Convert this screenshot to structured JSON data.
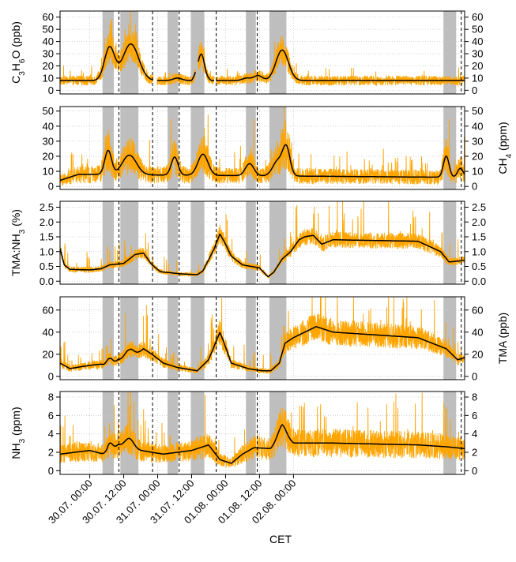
{
  "colors": {
    "raw": "#FFA500",
    "smooth": "#000000",
    "shade": "#BEBEBE",
    "grid": "#C8C8C8",
    "vline": "#000000"
  },
  "chart_data": {
    "type": "line",
    "xlabel": "CET",
    "x_unit": "hours since 29.07. 00:00",
    "x_range": [
      13.5,
      156.5
    ],
    "x_ticks": [
      {
        "x": 24,
        "label": "30.07. 00:00"
      },
      {
        "x": 36,
        "label": "30.07. 12:00"
      },
      {
        "x": 48,
        "label": "31.07. 00:00"
      },
      {
        "x": 60,
        "label": "31.07. 12:00"
      },
      {
        "x": 72,
        "label": "01.08. 00:00"
      },
      {
        "x": 84,
        "label": "01.08. 12:00"
      },
      {
        "x": 96,
        "label": "02.08. 00:00"
      }
    ],
    "shaded_intervals": [
      [
        28.5,
        32.5
      ],
      [
        34.8,
        41.2
      ],
      [
        51.5,
        55.2
      ],
      [
        59.7,
        64.5
      ],
      [
        79.2,
        82.7
      ],
      [
        87.5,
        93.5
      ],
      [
        149,
        153.5
      ]
    ],
    "dashed_lines": [
      34.3,
      46.2,
      55.6,
      68.7,
      83.2,
      155.3
    ],
    "panels": [
      {
        "id": "acetone",
        "label_left_main": "C",
        "label_left_sub1": "3",
        "label_left_mid": "H",
        "label_left_sub2": "6",
        "label_left_end": "O (ppb)",
        "label_right": "",
        "ylim": [
          -3,
          65
        ],
        "yticks": [
          0,
          10,
          20,
          30,
          40,
          50,
          60
        ],
        "y_tick_labels": [
          "0",
          "10",
          "20",
          "30",
          "40",
          "50",
          "60"
        ],
        "gaps": [
          [
            46.4,
            47.8
          ],
          [
            61.4,
            62.2
          ],
          [
            68.0,
            68.6
          ]
        ],
        "baseline": 8,
        "noise_rel": 0.35,
        "spikiness": 0.6,
        "events": [
          [
            31.0,
            27,
            1.8
          ],
          [
            38.5,
            30,
            2.8
          ],
          [
            55.0,
            2,
            1.5
          ],
          [
            63.5,
            16,
            1.0
          ],
          [
            79.5,
            2,
            1.5
          ],
          [
            83.5,
            4,
            1.5
          ],
          [
            92.0,
            25,
            2.2
          ]
        ],
        "drift": [
          [
            13.5,
            0
          ],
          [
            60,
            0
          ],
          [
            62,
            8
          ],
          [
            67,
            0
          ],
          [
            156.5,
            0
          ]
        ]
      },
      {
        "id": "ch4",
        "label_left_main": "",
        "label_right": "CH",
        "label_right_sub": "4",
        "label_right_end": " (ppm)",
        "ylim": [
          -2,
          53
        ],
        "yticks": [
          0,
          10,
          20,
          30,
          40,
          50
        ],
        "y_tick_labels": [
          "0",
          "10",
          "20",
          "30",
          "40",
          "50"
        ],
        "gaps": [],
        "baseline": 6,
        "noise_rel": 0.55,
        "spikiness": 1.4,
        "events": [
          [
            30.5,
            16,
            1.2
          ],
          [
            38.0,
            13,
            2.5
          ],
          [
            54.0,
            12,
            1.2
          ],
          [
            64.0,
            14,
            1.8
          ],
          [
            80.5,
            8,
            1.5
          ],
          [
            90.5,
            10,
            1.8
          ],
          [
            93.5,
            18,
            1.3
          ],
          [
            150,
            14,
            1.0
          ],
          [
            155,
            6,
            1.0
          ]
        ],
        "drift": [
          [
            13.5,
            -2
          ],
          [
            20,
            2
          ],
          [
            156.5,
            0
          ]
        ]
      },
      {
        "id": "ratio",
        "label_left_main": "TMA:NH",
        "label_left_sub1": "3",
        "label_left_end": " (%)",
        "label_right": "",
        "ylim": [
          -0.1,
          2.7
        ],
        "yticks": [
          0,
          0.5,
          1.0,
          1.5,
          2.0,
          2.5
        ],
        "y_tick_labels": [
          "0.0",
          "0.5",
          "1.0",
          "1.5",
          "2.0",
          "2.5"
        ],
        "gaps": [],
        "baseline": 0,
        "noise_rel": 0.18,
        "spikiness": 0.9,
        "events": [],
        "drift": [
          [
            13.5,
            1.1
          ],
          [
            15,
            0.55
          ],
          [
            17,
            0.4
          ],
          [
            24,
            0.38
          ],
          [
            28,
            0.42
          ],
          [
            31,
            0.55
          ],
          [
            36,
            0.6
          ],
          [
            40,
            0.9
          ],
          [
            43,
            0.95
          ],
          [
            46,
            0.55
          ],
          [
            49,
            0.32
          ],
          [
            56,
            0.25
          ],
          [
            62,
            0.22
          ],
          [
            64,
            0.35
          ],
          [
            68,
            1.1
          ],
          [
            70,
            1.6
          ],
          [
            72,
            1.25
          ],
          [
            74,
            0.85
          ],
          [
            78,
            0.55
          ],
          [
            84,
            0.45
          ],
          [
            87,
            0.15
          ],
          [
            89,
            0.3
          ],
          [
            92,
            0.75
          ],
          [
            95,
            1.0
          ],
          [
            98,
            1.4
          ],
          [
            100,
            1.5
          ],
          [
            103,
            1.55
          ],
          [
            106,
            1.25
          ],
          [
            110,
            1.4
          ],
          [
            140,
            1.35
          ],
          [
            148,
            1.0
          ],
          [
            151,
            0.65
          ],
          [
            156.5,
            0.7
          ]
        ]
      },
      {
        "id": "tma",
        "label_left_main": "",
        "label_right": "TMA (ppb)",
        "ylim": [
          -3,
          72
        ],
        "yticks": [
          0,
          20,
          40,
          60
        ],
        "y_tick_labels": [
          "0",
          "20",
          "40",
          "60"
        ],
        "gaps": [],
        "baseline": 0,
        "noise_rel": 0.28,
        "spikiness": 1.1,
        "events": [
          [
            31,
            8,
            1.0
          ],
          [
            38,
            10,
            1.5
          ]
        ],
        "drift": [
          [
            13.5,
            12
          ],
          [
            17,
            7
          ],
          [
            24,
            10
          ],
          [
            28,
            11
          ],
          [
            31,
            8
          ],
          [
            34,
            15
          ],
          [
            38,
            14
          ],
          [
            43,
            25
          ],
          [
            46,
            20
          ],
          [
            50,
            12
          ],
          [
            55,
            8
          ],
          [
            62,
            5
          ],
          [
            66,
            15
          ],
          [
            70,
            40
          ],
          [
            71.5,
            30
          ],
          [
            74,
            12
          ],
          [
            80,
            7
          ],
          [
            85,
            5
          ],
          [
            88,
            5
          ],
          [
            91,
            12
          ],
          [
            93,
            30
          ],
          [
            96,
            35
          ],
          [
            100,
            40
          ],
          [
            104,
            45
          ],
          [
            110,
            40
          ],
          [
            140,
            35
          ],
          [
            150,
            25
          ],
          [
            154,
            15
          ],
          [
            156.5,
            17
          ]
        ]
      },
      {
        "id": "nh3",
        "label_left_main": "NH",
        "label_left_sub1": "3",
        "label_left_end": " (ppm)",
        "label_right": "",
        "ylim": [
          -0.4,
          8.6
        ],
        "yticks": [
          0,
          2,
          4,
          6,
          8
        ],
        "y_tick_labels": [
          "0",
          "2",
          "4",
          "6",
          "8"
        ],
        "gaps": [],
        "baseline": 0,
        "noise_rel": 0.45,
        "spikiness": 1.4,
        "events": [
          [
            31,
            1.0,
            1.0
          ],
          [
            38,
            1.0,
            1.5
          ],
          [
            92,
            1.2,
            1.5
          ]
        ],
        "drift": [
          [
            13.5,
            1.8
          ],
          [
            24,
            2.2
          ],
          [
            30,
            1.7
          ],
          [
            34,
            2.8
          ],
          [
            42,
            2.2
          ],
          [
            50,
            1.8
          ],
          [
            60,
            2.2
          ],
          [
            66,
            2.8
          ],
          [
            70,
            1.2
          ],
          [
            74,
            0.8
          ],
          [
            78,
            1.8
          ],
          [
            82,
            2.5
          ],
          [
            88,
            2.4
          ],
          [
            92,
            3.8
          ],
          [
            96,
            3.0
          ],
          [
            110,
            3.0
          ],
          [
            140,
            2.8
          ],
          [
            150,
            2.6
          ],
          [
            156.5,
            2.4
          ]
        ]
      }
    ]
  }
}
